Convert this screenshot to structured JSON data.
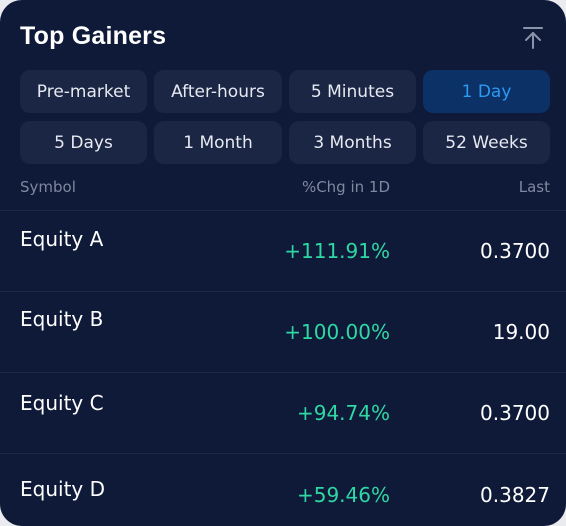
{
  "header": {
    "title": "Top Gainers",
    "collapse_icon": "arrow-up-to-top-icon"
  },
  "filters": [
    {
      "label": "Pre-market",
      "active": false
    },
    {
      "label": "After-hours",
      "active": false
    },
    {
      "label": "5 Minutes",
      "active": false
    },
    {
      "label": "1 Day",
      "active": true
    },
    {
      "label": "5 Days",
      "active": false
    },
    {
      "label": "1 Month",
      "active": false
    },
    {
      "label": "3 Months",
      "active": false
    },
    {
      "label": "52 Weeks",
      "active": false
    }
  ],
  "table": {
    "columns": {
      "symbol": "Symbol",
      "change": "%Chg in 1D",
      "last": "Last"
    },
    "rows": [
      {
        "symbol": "Equity A",
        "change": "+111.91%",
        "last": "0.3700"
      },
      {
        "symbol": "Equity B",
        "change": "+100.00%",
        "last": "19.00"
      },
      {
        "symbol": "Equity C",
        "change": "+94.74%",
        "last": "0.3700"
      },
      {
        "symbol": "Equity D",
        "change": "+59.46%",
        "last": "0.3827"
      }
    ]
  },
  "colors": {
    "panel_bg": "#0f1a38",
    "chip_bg": "#1b2645",
    "chip_active_bg": "#0c3166",
    "accent_blue": "#2b9af3",
    "gain_green": "#2fd7a4"
  }
}
